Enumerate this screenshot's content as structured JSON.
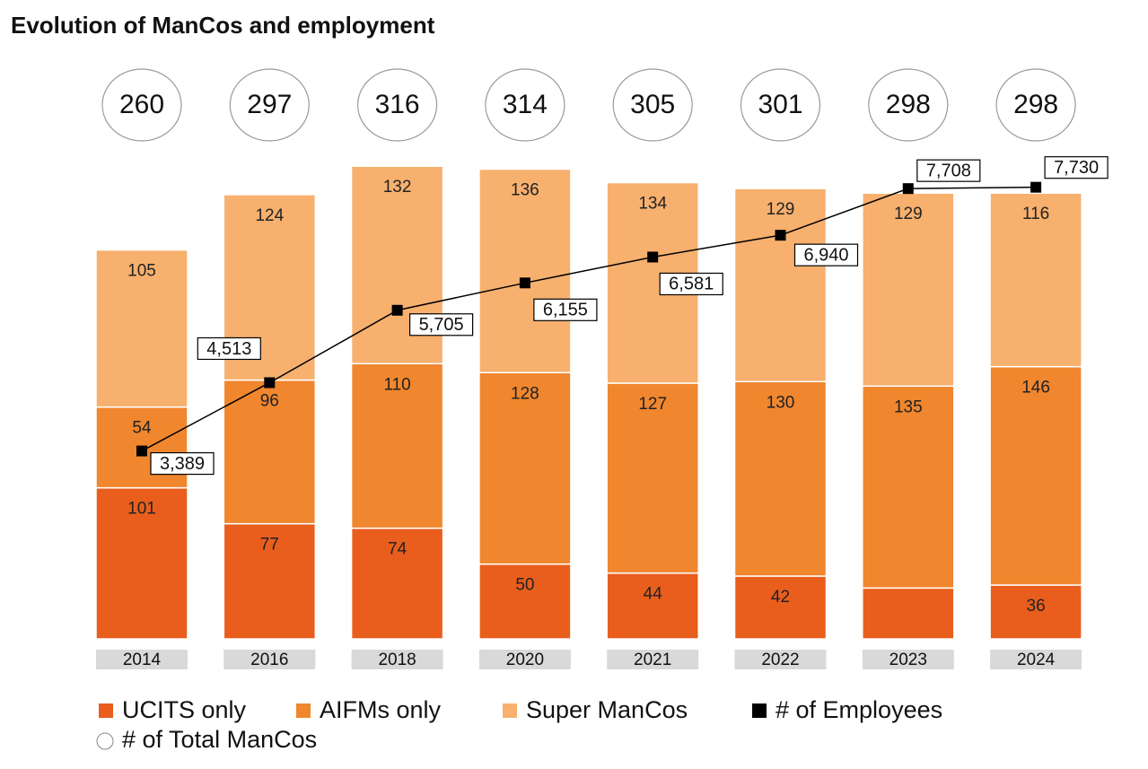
{
  "chart_data": {
    "type": "bar",
    "title": "Evolution of ManCos and employment",
    "categories": [
      "2014",
      "2016",
      "2018",
      "2020",
      "2021",
      "2022",
      "2023",
      "2024"
    ],
    "series": [
      {
        "name": "UCITS only",
        "color": "#e95e1d",
        "values": [
          101,
          77,
          74,
          50,
          44,
          42,
          34,
          36
        ]
      },
      {
        "name": "AIFMs only",
        "color": "#f0862e",
        "values": [
          54,
          96,
          110,
          128,
          127,
          130,
          135,
          146
        ]
      },
      {
        "name": "Super ManCos",
        "color": "#f7b06e",
        "values": [
          105,
          124,
          132,
          136,
          134,
          129,
          129,
          116
        ]
      },
      {
        "name": "# of Employees",
        "type": "line",
        "color": "#000000",
        "values": [
          3389,
          4513,
          5705,
          6155,
          6581,
          6940,
          7708,
          7730
        ],
        "value_labels": [
          "3,389",
          "4,513",
          "5,705",
          "6,155",
          "6,581",
          "6,940",
          "7,708",
          "7,730"
        ]
      }
    ],
    "totals": {
      "name": "# of Total ManCos",
      "values": [
        260,
        297,
        316,
        314,
        305,
        301,
        298,
        298
      ]
    }
  }
}
